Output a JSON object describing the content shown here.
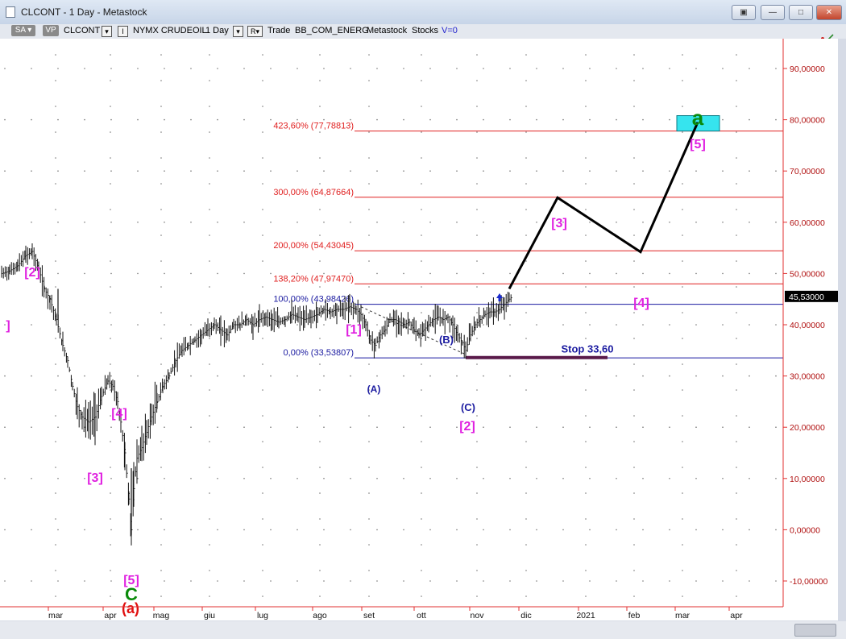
{
  "window": {
    "title": "CLCONT - 1 Day - Metastock",
    "buttons": [
      "restore",
      "minimize",
      "maximize",
      "close"
    ]
  },
  "toolbar": {
    "sa": "SA",
    "vp": "VP",
    "symbol": "CLCONT",
    "ind": "I",
    "exchange": "NYMX CRUDEOIL",
    "period": "1 Day",
    "r": "R",
    "trade": "Trade",
    "feed": "BB_COM_ENERG",
    "source": "Metastock",
    "stocks": "Stocks",
    "v": "V=0"
  },
  "chart_data": {
    "type": "ohlc-bar",
    "x_ticks": [
      "mar",
      "apr",
      "mag",
      "giu",
      "lug",
      "ago",
      "set",
      "ott",
      "nov",
      "dic",
      "2021",
      "feb",
      "mar",
      "apr"
    ],
    "y_ticks": [
      "90,00000",
      "80,00000",
      "70,00000",
      "60,00000",
      "50,00000",
      "40,00000",
      "30,00000",
      "20,00000",
      "10,00000",
      "0,00000",
      "-10,00000"
    ],
    "y_tick_values": [
      90,
      80,
      70,
      60,
      50,
      40,
      30,
      20,
      10,
      0,
      -10
    ],
    "ylim": [
      -14,
      100
    ],
    "last_price": "45,53000",
    "price_path": [
      [
        2,
        50
      ],
      [
        12,
        50.5
      ],
      [
        22,
        51.5
      ],
      [
        32,
        53.5
      ],
      [
        40,
        54.3
      ],
      [
        48,
        51
      ],
      [
        55,
        47
      ],
      [
        62,
        45
      ],
      [
        70,
        41
      ],
      [
        78,
        36
      ],
      [
        84,
        33
      ],
      [
        90,
        28
      ],
      [
        96,
        24
      ],
      [
        102,
        22
      ],
      [
        110,
        21
      ],
      [
        118,
        22
      ],
      [
        126,
        26
      ],
      [
        134,
        29
      ],
      [
        140,
        28
      ],
      [
        146,
        25
      ],
      [
        150,
        21
      ],
      [
        155,
        15
      ],
      [
        160,
        6
      ],
      [
        163,
        0
      ],
      [
        166,
        8
      ],
      [
        170,
        14
      ],
      [
        176,
        16
      ],
      [
        182,
        19
      ],
      [
        188,
        22
      ],
      [
        195,
        25
      ],
      [
        202,
        28
      ],
      [
        210,
        30
      ],
      [
        218,
        33
      ],
      [
        226,
        35
      ],
      [
        234,
        36
      ],
      [
        242,
        37
      ],
      [
        250,
        38
      ],
      [
        258,
        39
      ],
      [
        266,
        40
      ],
      [
        274,
        39
      ],
      [
        282,
        38
      ],
      [
        290,
        40
      ],
      [
        298,
        40
      ],
      [
        306,
        41
      ],
      [
        314,
        40
      ],
      [
        322,
        41
      ],
      [
        330,
        41.5
      ],
      [
        338,
        41
      ],
      [
        346,
        40.5
      ],
      [
        354,
        41
      ],
      [
        362,
        42
      ],
      [
        370,
        41.5
      ],
      [
        378,
        41
      ],
      [
        386,
        41.5
      ],
      [
        394,
        42
      ],
      [
        402,
        43
      ],
      [
        410,
        42.5
      ],
      [
        418,
        43
      ],
      [
        426,
        43
      ],
      [
        434,
        43.5
      ],
      [
        442,
        43
      ],
      [
        448,
        42
      ],
      [
        454,
        40
      ],
      [
        460,
        37
      ],
      [
        466,
        36
      ],
      [
        472,
        38
      ],
      [
        478,
        39
      ],
      [
        484,
        41
      ],
      [
        490,
        41
      ],
      [
        496,
        40.5
      ],
      [
        502,
        40
      ],
      [
        508,
        40.5
      ],
      [
        514,
        39
      ],
      [
        520,
        38
      ],
      [
        526,
        39
      ],
      [
        532,
        40
      ],
      [
        538,
        41
      ],
      [
        544,
        41.5
      ],
      [
        550,
        41
      ],
      [
        556,
        41.5
      ],
      [
        562,
        40
      ],
      [
        568,
        38
      ],
      [
        574,
        36.5
      ],
      [
        578,
        35
      ],
      [
        584,
        38
      ],
      [
        590,
        40
      ],
      [
        596,
        41
      ],
      [
        602,
        42
      ],
      [
        608,
        42.5
      ],
      [
        614,
        42.5
      ],
      [
        620,
        43
      ],
      [
        626,
        44
      ],
      [
        632,
        45
      ],
      [
        636,
        45.5
      ]
    ],
    "fib_levels": [
      {
        "label": "423,60% (77,78813)",
        "value": 77.78813,
        "color": "#e02020"
      },
      {
        "label": "300,00% (64,87664)",
        "value": 64.87664,
        "color": "#e02020"
      },
      {
        "label": "200,00% (54,43045)",
        "value": 54.43045,
        "color": "#e02020"
      },
      {
        "label": "138,20% (47,97470)",
        "value": 47.9747,
        "color": "#e02020"
      },
      {
        "label": "100,00% (43,98426)",
        "value": 43.98426,
        "color": "#1a1aa0"
      },
      {
        "label": "0,00% (33,53807)",
        "value": 33.53807,
        "color": "#1a1aa0"
      }
    ],
    "projection_path": [
      [
        632,
        47
      ],
      [
        692,
        64.8
      ],
      [
        795,
        54.2
      ],
      [
        866,
        79.5
      ]
    ],
    "target_box": {
      "x1": 840,
      "x2": 893,
      "y_top": 80.8,
      "y_bottom": 77.8,
      "color": "#36e4ee"
    },
    "stop": {
      "label": "Stop 33,60",
      "value": 33.6,
      "x1": 578,
      "x2": 754
    },
    "annotations": [
      {
        "text": "[2]",
        "x": 40,
        "y": 295,
        "color": "#e020e0",
        "size": 16
      },
      {
        "text": "]",
        "x": 10,
        "y": 361,
        "color": "#e020e0",
        "size": 16
      },
      {
        "text": "[4]",
        "x": 148,
        "y": 470,
        "color": "#e020e0",
        "size": 16
      },
      {
        "text": "[3]",
        "x": 118,
        "y": 550,
        "color": "#e020e0",
        "size": 16
      },
      {
        "text": "[5]",
        "x": 163,
        "y": 677,
        "color": "#e020e0",
        "size": 16
      },
      {
        "text": "C",
        "x": 163,
        "y": 697,
        "color": "#0a8a0a",
        "size": 22
      },
      {
        "text": "(a)",
        "x": 162,
        "y": 713,
        "color": "#e01010",
        "size": 18
      },
      {
        "text": "[1]",
        "x": 439,
        "y": 366,
        "color": "#e020e0",
        "size": 16
      },
      {
        "text": "(A)",
        "x": 464,
        "y": 439,
        "color": "#1a1aa0",
        "size": 12
      },
      {
        "text": "(B)",
        "x": 554,
        "y": 378,
        "color": "#1a1aa0",
        "size": 13
      },
      {
        "text": "(C)",
        "x": 581,
        "y": 462,
        "color": "#1a1aa0",
        "size": 13
      },
      {
        "text": "[2]",
        "x": 580,
        "y": 486,
        "color": "#e020e0",
        "size": 16
      },
      {
        "text": "[3]",
        "x": 694,
        "y": 234,
        "color": "#e020e0",
        "size": 16
      },
      {
        "text": "[4]",
        "x": 796,
        "y": 333,
        "color": "#e020e0",
        "size": 16
      },
      {
        "text": "[5]",
        "x": 866,
        "y": 136,
        "color": "#e020e0",
        "size": 16
      },
      {
        "text": "a",
        "x": 866,
        "y": 107,
        "color": "#0a8a0a",
        "size": 26
      }
    ]
  }
}
